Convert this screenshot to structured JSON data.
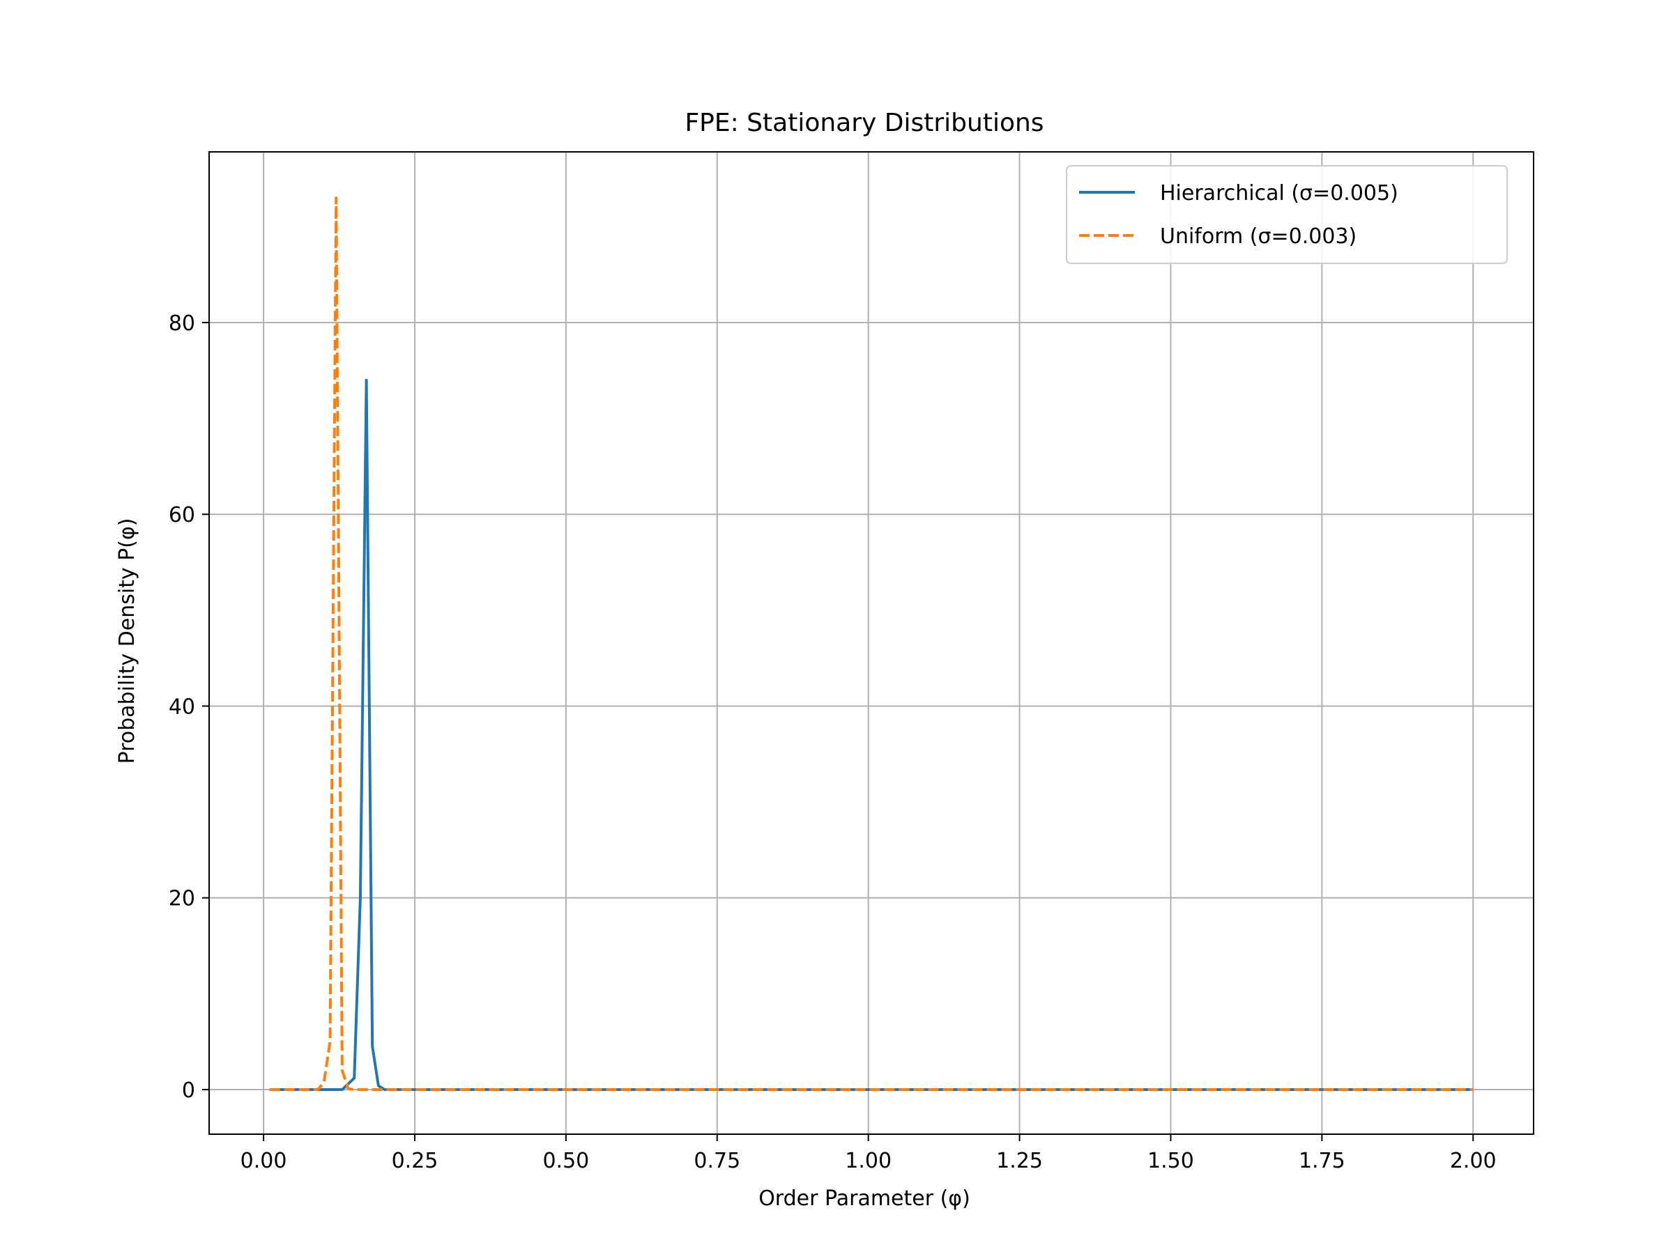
{
  "chart_data": {
    "type": "line",
    "title": "FPE: Stationary Distributions",
    "xlabel": "Order Parameter (φ)",
    "ylabel": "Probability Density P(φ)",
    "xlim": [
      -0.09,
      2.1
    ],
    "ylim": [
      -4.65,
      97.8
    ],
    "xticks": [
      0.0,
      0.25,
      0.5,
      0.75,
      1.0,
      1.25,
      1.5,
      1.75,
      2.0
    ],
    "xtick_labels": [
      "0.00",
      "0.25",
      "0.50",
      "0.75",
      "1.00",
      "1.25",
      "1.50",
      "1.75",
      "2.00"
    ],
    "yticks": [
      0,
      20,
      40,
      60,
      80
    ],
    "ytick_labels": [
      "0",
      "20",
      "40",
      "60",
      "80"
    ],
    "grid": true,
    "legend_position": "upper-right",
    "series": [
      {
        "name": "Hierarchical (σ=0.005)",
        "color": "#1f77b4",
        "style": "solid",
        "points": [
          [
            0.01,
            0
          ],
          [
            0.13,
            0
          ],
          [
            0.15,
            1.2
          ],
          [
            0.16,
            20
          ],
          [
            0.17,
            74
          ],
          [
            0.18,
            4.5
          ],
          [
            0.19,
            0.4
          ],
          [
            0.2,
            0
          ],
          [
            2.0,
            0
          ]
        ]
      },
      {
        "name": "Uniform (σ=0.003)",
        "color": "#ff7f0e",
        "style": "dashed",
        "points": [
          [
            0.01,
            0
          ],
          [
            0.09,
            0
          ],
          [
            0.1,
            0.8
          ],
          [
            0.11,
            5
          ],
          [
            0.12,
            93
          ],
          [
            0.13,
            2
          ],
          [
            0.14,
            0.1
          ],
          [
            0.15,
            0
          ],
          [
            2.0,
            0
          ]
        ]
      }
    ]
  }
}
